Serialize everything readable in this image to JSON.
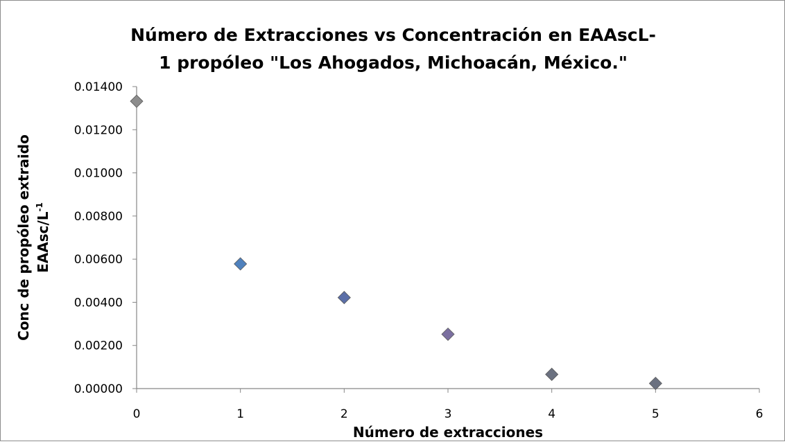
{
  "chart_data": {
    "type": "scatter",
    "title_lines": [
      "Número de Extracciones vs Concentración en EAAscL-",
      "1 propóleo \"Los Ahogados, Michoacán, México.\""
    ],
    "xlabel": "Número de extracciones",
    "ylabel_lines": [
      "Conc de propóleo extraido",
      "EAAsc/L"
    ],
    "ylabel_superscript": "-1",
    "xlim": [
      0,
      6
    ],
    "ylim": [
      0,
      0.014
    ],
    "x_ticks": [
      "0",
      "1",
      "2",
      "3",
      "4",
      "5",
      "6"
    ],
    "y_ticks": [
      "0.00000",
      "0.00200",
      "0.00400",
      "0.00600",
      "0.00800",
      "0.01000",
      "0.01200",
      "0.01400"
    ],
    "grid": false,
    "legend": "none",
    "marker": "diamond",
    "series": [
      {
        "points": [
          {
            "x": 0,
            "y": 0.01332,
            "color": "#8c8c8c"
          },
          {
            "x": 1,
            "y": 0.00578,
            "color": "#4f81bd"
          },
          {
            "x": 2,
            "y": 0.00422,
            "color": "#5b6fa8"
          },
          {
            "x": 3,
            "y": 0.00252,
            "color": "#7b6fa0"
          },
          {
            "x": 4,
            "y": 0.00066,
            "color": "#6b7180"
          },
          {
            "x": 5,
            "y": 0.00024,
            "color": "#6b7180"
          }
        ]
      }
    ]
  }
}
